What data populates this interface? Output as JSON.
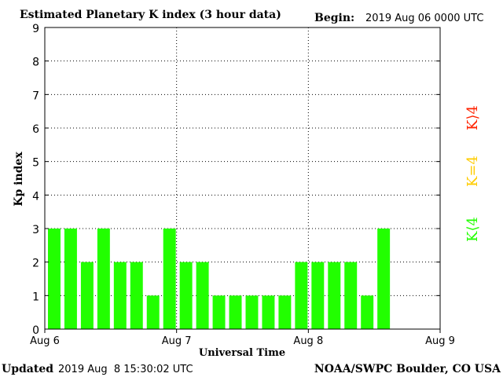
{
  "header": {
    "title": "Estimated Planetary K index (3 hour data)",
    "begin_label": "Begin:",
    "begin_value": "2019 Aug 06 0000 UTC"
  },
  "footer": {
    "updated_label": "Updated",
    "updated_value": "2019 Aug  8 15:30:02 UTC",
    "source": "NOAA/SWPC Boulder, CO USA"
  },
  "legend": {
    "high": "K⟩4",
    "equal": "K=4",
    "low": "K⟨4"
  },
  "colors": {
    "bar_low": "#22ff00",
    "equal": "#ffcc00",
    "high": "#ff2200",
    "grid": "#000000"
  },
  "chart_data": {
    "type": "bar",
    "title": "Estimated Planetary K index (3 hour data)",
    "xlabel": "Universal Time",
    "ylabel": "Kp index",
    "ylim": [
      0,
      9
    ],
    "y_ticks": [
      "0",
      "1",
      "2",
      "3",
      "4",
      "5",
      "6",
      "7",
      "8",
      "9"
    ],
    "x_ticks": [
      "Aug 6",
      "Aug 7",
      "Aug 8",
      "Aug 9"
    ],
    "grid": true,
    "values": [
      3,
      3,
      2,
      3,
      2,
      2,
      1,
      3,
      2,
      2,
      1,
      1,
      1,
      1,
      1,
      2,
      2,
      2,
      2,
      1,
      3
    ]
  }
}
